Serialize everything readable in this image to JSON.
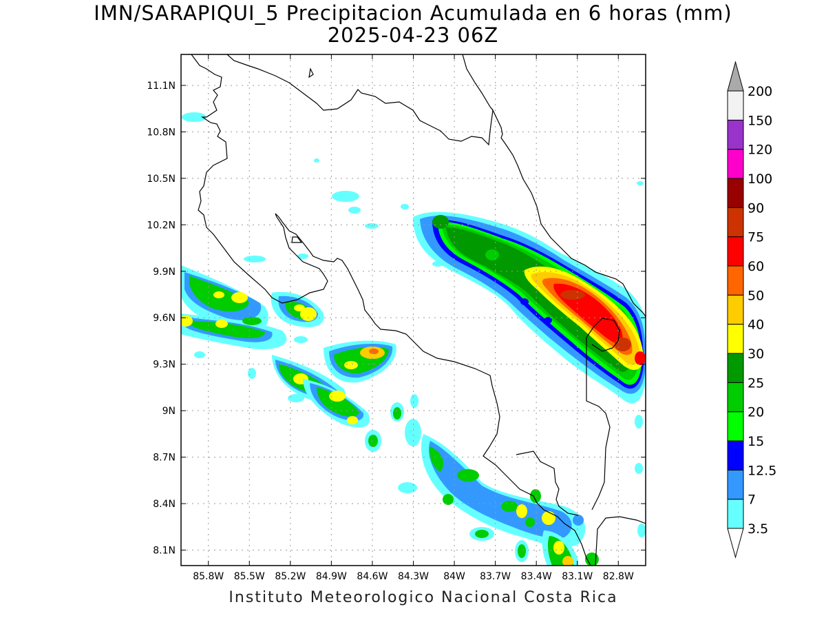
{
  "title": {
    "line1": "IMN/SARAPIQUI_5 Precipitacion Acumulada en 6 horas (mm)",
    "line2": "2025-04-23 06Z"
  },
  "credit": "Instituto Meteorologico Nacional Costa Rica",
  "map": {
    "type": "precipitation-map",
    "lon_range": [
      -86.0,
      -82.6
    ],
    "lat_range": [
      8.0,
      11.3
    ],
    "grid": true,
    "lon_ticks": [
      {
        "value": -85.8,
        "label": "85.8W"
      },
      {
        "value": -85.5,
        "label": "85.5W"
      },
      {
        "value": -85.2,
        "label": "85.2W"
      },
      {
        "value": -84.9,
        "label": "84.9W"
      },
      {
        "value": -84.6,
        "label": "84.6W"
      },
      {
        "value": -84.3,
        "label": "84.3W"
      },
      {
        "value": -84.0,
        "label": "84W"
      },
      {
        "value": -83.7,
        "label": "83.7W"
      },
      {
        "value": -83.4,
        "label": "83.4W"
      },
      {
        "value": -83.1,
        "label": "83.1W"
      },
      {
        "value": -82.8,
        "label": "82.8W"
      }
    ],
    "lat_ticks": [
      {
        "value": 11.1,
        "label": "11.1N"
      },
      {
        "value": 10.8,
        "label": "10.8N"
      },
      {
        "value": 10.5,
        "label": "10.5N"
      },
      {
        "value": 10.2,
        "label": "10.2N"
      },
      {
        "value": 9.9,
        "label": "9.9N"
      },
      {
        "value": 9.6,
        "label": "9.6N"
      },
      {
        "value": 9.3,
        "label": "9.3N"
      },
      {
        "value": 9.0,
        "label": "9N"
      },
      {
        "value": 8.7,
        "label": "8.7N"
      },
      {
        "value": 8.4,
        "label": "8.4N"
      },
      {
        "value": 8.1,
        "label": "8.1N"
      }
    ]
  },
  "colorbar": {
    "levels": [
      "3.5",
      "7",
      "12.5",
      "15",
      "20",
      "25",
      "30",
      "40",
      "50",
      "60",
      "75",
      "90",
      "100",
      "120",
      "150",
      "200"
    ],
    "colors": [
      "#66ffff",
      "#3399ff",
      "#0000ff",
      "#00ff00",
      "#00cc00",
      "#009900",
      "#ffff00",
      "#ffcc00",
      "#ff6600",
      "#ff0000",
      "#cc3300",
      "#990000",
      "#ff00cc",
      "#9933cc",
      "#f2f2f2"
    ],
    "under_color": "#ffffff",
    "over_color": "#aaaaaa"
  }
}
